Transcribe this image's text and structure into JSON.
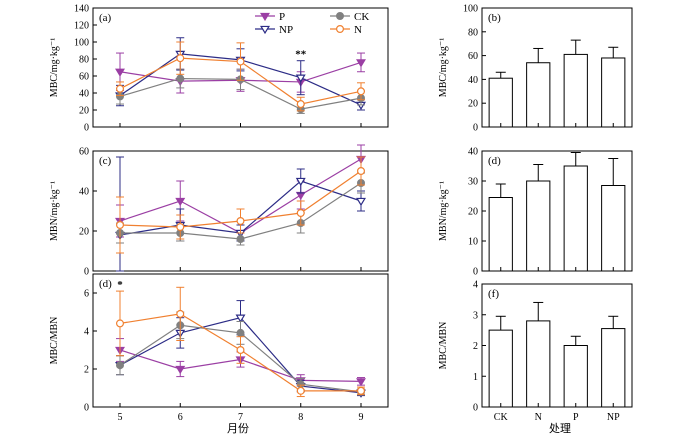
{
  "xlabel_left": "月份",
  "xlabel_right": "处理",
  "chart_data": [
    {
      "type": "line",
      "panel": "(a)",
      "ylabel": "MBC/mg·kg⁻¹",
      "ylim": [
        0,
        140
      ],
      "yticks": [
        0,
        20,
        40,
        60,
        80,
        100,
        120,
        140
      ],
      "x": [
        5,
        6,
        7,
        8,
        9
      ],
      "series": [
        {
          "name": "P",
          "color": "#9b3fa4",
          "marker": "tri-down-filled",
          "values": [
            65,
            54,
            55,
            53,
            76
          ],
          "errors": [
            22,
            14,
            13,
            12,
            11
          ]
        },
        {
          "name": "NP",
          "color": "#2c2c86",
          "marker": "tri-down-open",
          "values": [
            37,
            86,
            79,
            58,
            26
          ],
          "errors": [
            12,
            19,
            13,
            20,
            6
          ]
        },
        {
          "name": "CK",
          "color": "#808080",
          "marker": "circle-filled",
          "values": [
            36,
            57,
            56,
            21,
            34
          ],
          "errors": [
            9,
            11,
            12,
            5,
            8
          ]
        },
        {
          "name": "N",
          "color": "#f08030",
          "marker": "circle-open",
          "values": [
            45,
            81,
            77,
            27,
            42
          ],
          "errors": [
            8,
            19,
            22,
            8,
            10
          ]
        }
      ],
      "annotations": [
        {
          "x": 8,
          "text": "**"
        }
      ]
    },
    {
      "type": "line",
      "panel": "(c)",
      "ylabel": "MBN/mg·kg⁻¹",
      "ylim": [
        0,
        60
      ],
      "yticks": [
        0,
        20,
        40,
        60
      ],
      "x": [
        5,
        6,
        7,
        8,
        9
      ],
      "series": [
        {
          "name": "P",
          "color": "#9b3fa4",
          "marker": "tri-down-filled",
          "values": [
            25,
            35,
            19,
            38,
            56
          ],
          "errors": [
            8,
            10,
            4,
            7,
            7
          ]
        },
        {
          "name": "NP",
          "color": "#2c2c86",
          "marker": "tri-down-open",
          "values": [
            18,
            23,
            19,
            45,
            35
          ],
          "errors": [
            39,
            8,
            4,
            6,
            5
          ]
        },
        {
          "name": "CK",
          "color": "#808080",
          "marker": "circle-filled",
          "values": [
            19,
            19,
            16,
            24,
            44
          ],
          "errors": [
            5,
            4,
            3,
            5,
            5
          ]
        },
        {
          "name": "N",
          "color": "#f08030",
          "marker": "circle-open",
          "values": [
            23,
            22,
            25,
            29,
            50
          ],
          "errors": [
            14,
            6,
            6,
            6,
            7
          ]
        }
      ],
      "annotations": []
    },
    {
      "type": "line",
      "panel": "(d)",
      "ylabel": "MBC/MBN",
      "ylim": [
        0,
        7
      ],
      "yticks": [
        0,
        2,
        4,
        6
      ],
      "x": [
        5,
        6,
        7,
        8,
        9
      ],
      "series": [
        {
          "name": "P",
          "color": "#9b3fa4",
          "marker": "tri-down-filled",
          "values": [
            3.0,
            2.0,
            2.5,
            1.4,
            1.35
          ],
          "errors": [
            0.6,
            0.4,
            0.4,
            0.3,
            0.2
          ]
        },
        {
          "name": "NP",
          "color": "#2c2c86",
          "marker": "tri-down-open",
          "values": [
            2.2,
            3.9,
            4.7,
            1.1,
            0.75
          ],
          "errors": [
            0.5,
            0.8,
            0.9,
            0.3,
            0.15
          ]
        },
        {
          "name": "CK",
          "color": "#808080",
          "marker": "circle-filled",
          "values": [
            2.2,
            4.3,
            3.9,
            1.2,
            0.8
          ],
          "errors": [
            0.5,
            0.7,
            0.6,
            0.3,
            0.15
          ]
        },
        {
          "name": "N",
          "color": "#f08030",
          "marker": "circle-open",
          "values": [
            4.4,
            4.9,
            3.0,
            0.85,
            0.85
          ],
          "errors": [
            1.7,
            1.4,
            0.7,
            0.3,
            0.2
          ]
        }
      ],
      "annotations": [
        {
          "x": 5,
          "text": "*"
        }
      ]
    },
    {
      "type": "bar",
      "panel": "(b)",
      "ylabel": "MBC/mg·kg⁻¹",
      "ylim": [
        0,
        100
      ],
      "yticks": [
        0,
        20,
        40,
        60,
        80,
        100
      ],
      "categories": [
        "CK",
        "N",
        "P",
        "NP"
      ],
      "values": [
        41,
        54,
        61,
        58
      ],
      "errors": [
        5,
        12,
        12,
        9
      ]
    },
    {
      "type": "bar",
      "panel": "(d)",
      "ylabel": "MBN/mg·kg⁻¹",
      "ylim": [
        0,
        40
      ],
      "yticks": [
        0,
        10,
        20,
        30,
        40
      ],
      "categories": [
        "CK",
        "N",
        "P",
        "NP"
      ],
      "values": [
        24.5,
        30,
        35,
        28.5
      ],
      "errors": [
        4.5,
        5.5,
        4.5,
        9
      ]
    },
    {
      "type": "bar",
      "panel": "(f)",
      "ylabel": "MBC/MBN",
      "ylim": [
        0,
        4
      ],
      "yticks": [
        0,
        1,
        2,
        3,
        4
      ],
      "categories": [
        "CK",
        "N",
        "P",
        "NP"
      ],
      "values": [
        2.5,
        2.8,
        2.0,
        2.55
      ],
      "errors": [
        0.45,
        0.6,
        0.3,
        0.4
      ]
    }
  ]
}
